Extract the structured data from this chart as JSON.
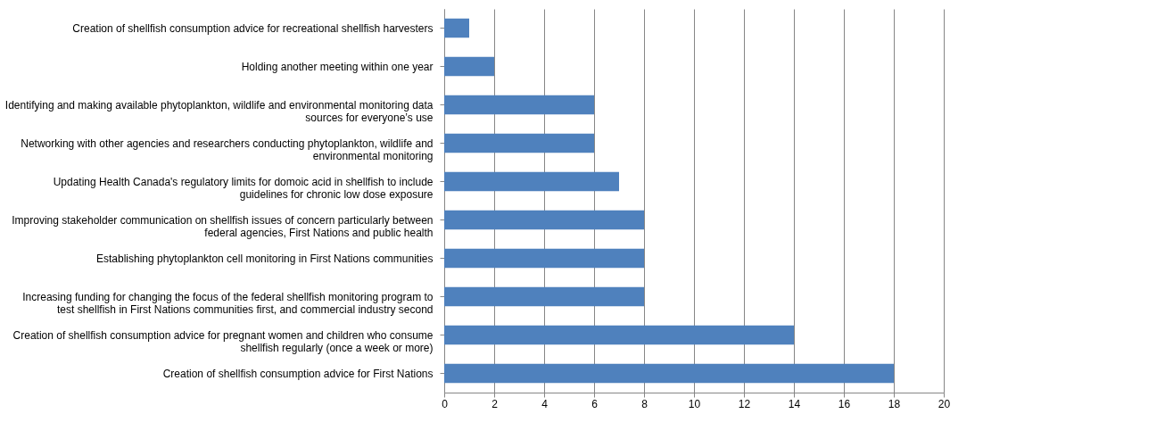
{
  "chart_data": {
    "type": "bar",
    "orientation": "horizontal",
    "categories": [
      "Creation of shellfish consumption advice for recreational shellfish harvesters",
      "Holding another meeting within one year",
      "Identifying and making available phytoplankton, wildlife and environmental monitoring data sources for everyone’s use",
      "Networking with other agencies and researchers conducting phytoplankton, wildlife and environmental monitoring",
      "Updating Health Canada's regulatory limits for domoic acid in shellfish to include guidelines for chronic low dose exposure",
      "Improving stakeholder communication on shellfish issues of concern particularly between federal agencies, First Nations and public health",
      "Establishing phytoplankton cell monitoring in First Nations communities",
      "Increasing funding for changing the focus of the federal shellfish monitoring program to test shellfish in First Nations communities first, and commercial industry second",
      "Creation of shellfish consumption advice for pregnant women and children who consume shellfish regularly (once a week or more)",
      "Creation of shellfish consumption advice for First Nations"
    ],
    "values": [
      1,
      2,
      6,
      6,
      7,
      8,
      8,
      8,
      14,
      18
    ],
    "color": "#4f81bd",
    "xlim": [
      0,
      20
    ],
    "xticks": [
      0,
      2,
      4,
      6,
      8,
      10,
      12,
      14,
      16,
      18,
      20
    ],
    "grid": "x"
  }
}
